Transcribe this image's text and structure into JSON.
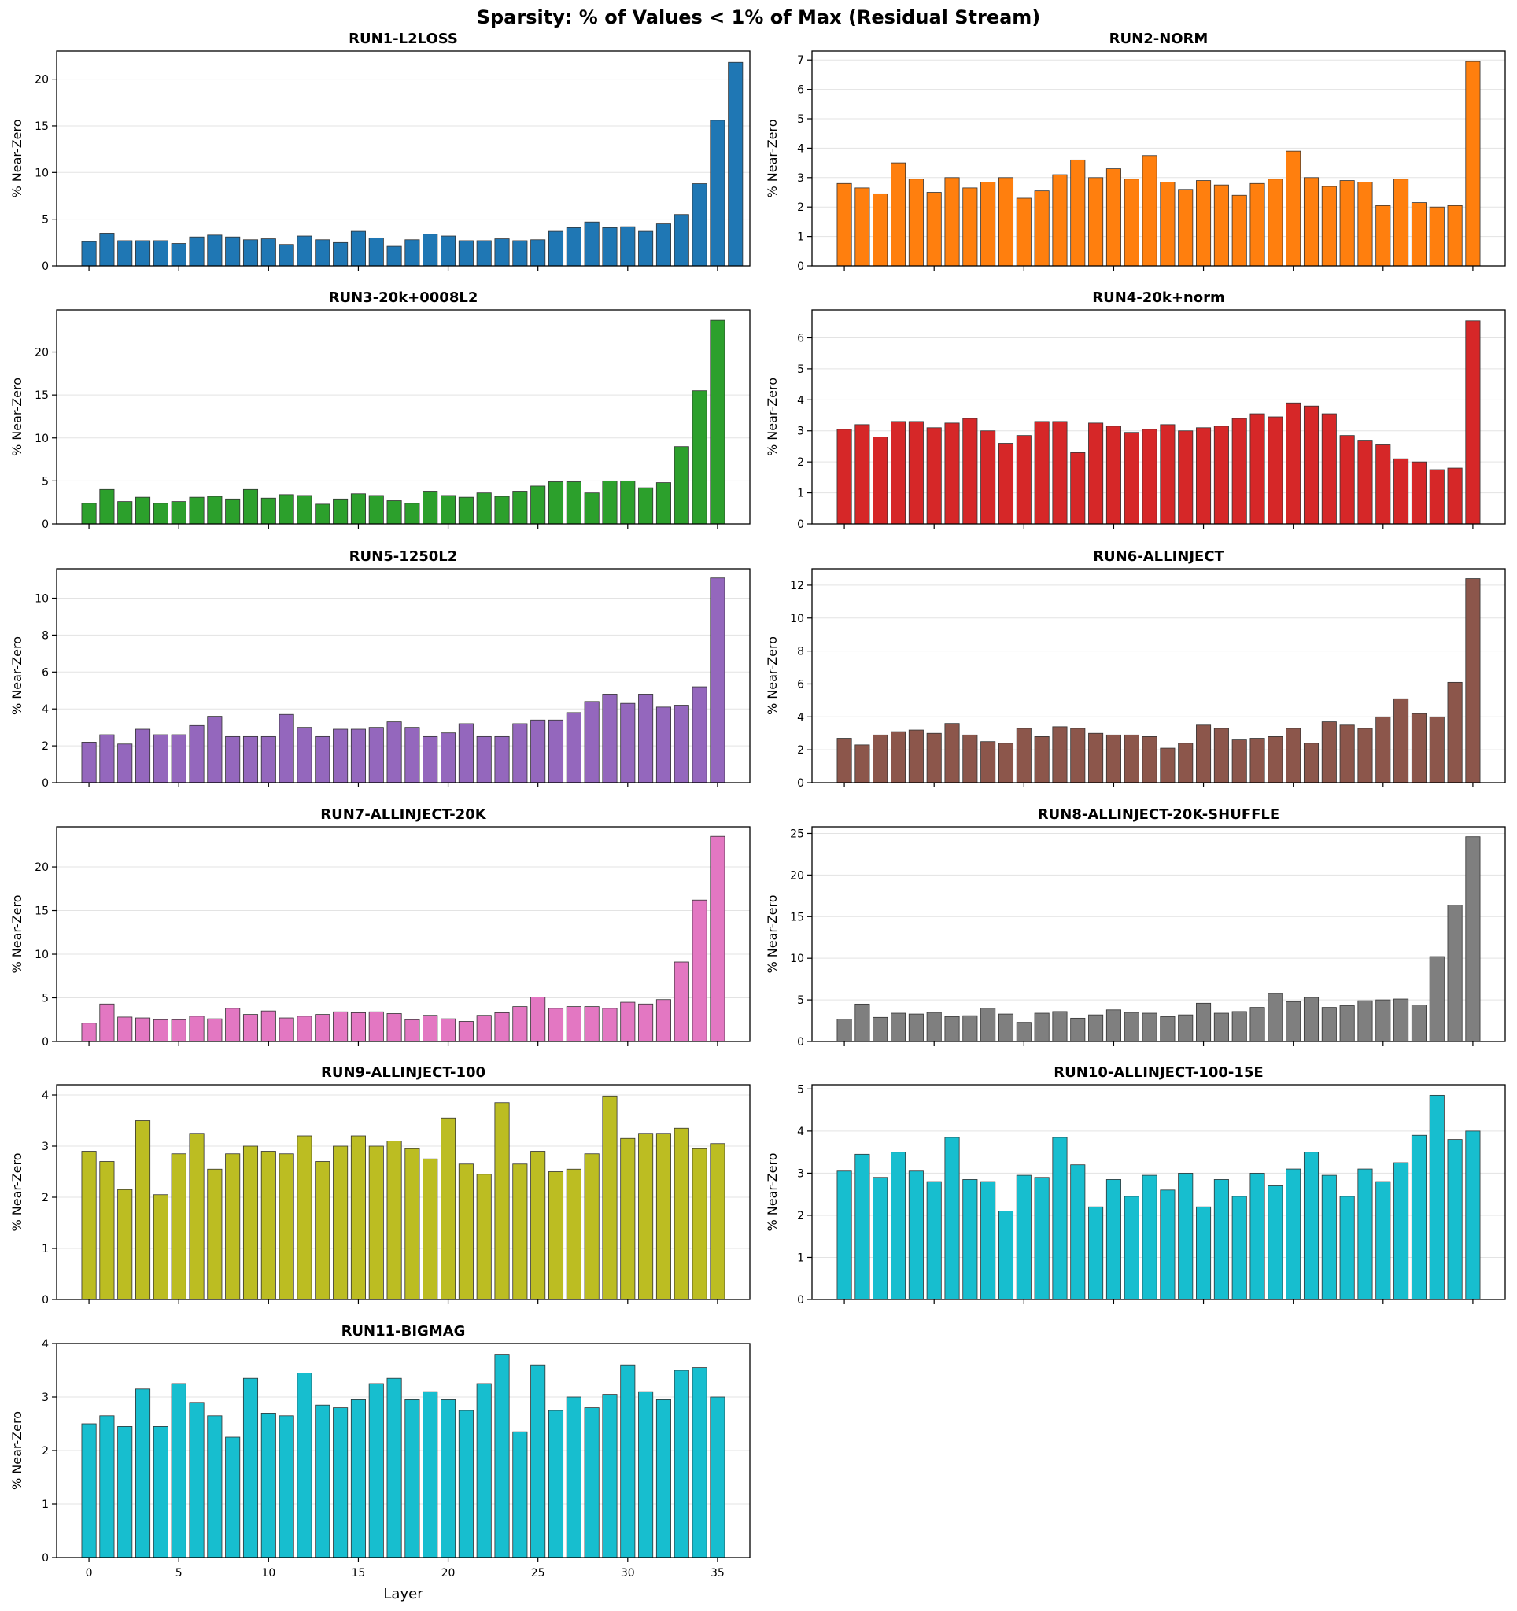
{
  "title": "Sparsity: % of Values < 1% of Max (Residual Stream)",
  "chart_data": [
    {
      "type": "bar",
      "title": "RUN1-L2LOSS",
      "color": "#1f77b4",
      "ylabel": "% Near-Zero",
      "ylim": [
        0,
        23
      ],
      "yticks": [
        0,
        5,
        10,
        15,
        20
      ],
      "values": [
        2.6,
        3.5,
        2.7,
        2.7,
        2.7,
        2.4,
        3.1,
        3.3,
        3.1,
        2.8,
        2.9,
        2.3,
        3.2,
        2.8,
        2.5,
        3.7,
        3.0,
        2.1,
        2.8,
        3.4,
        3.2,
        2.7,
        2.7,
        2.9,
        2.7,
        2.8,
        3.7,
        4.1,
        4.7,
        4.1,
        4.2,
        3.7,
        4.5,
        5.5,
        8.8,
        15.6,
        21.8
      ]
    },
    {
      "type": "bar",
      "title": "RUN2-NORM",
      "color": "#ff7f0e",
      "ylabel": "% Near-Zero",
      "ylim": [
        0,
        7.3
      ],
      "yticks": [
        0,
        1,
        2,
        3,
        4,
        5,
        6,
        7
      ],
      "values": [
        2.8,
        2.65,
        2.45,
        3.5,
        2.95,
        2.5,
        3.0,
        2.65,
        2.85,
        3.0,
        2.3,
        2.55,
        3.1,
        3.6,
        3.0,
        3.3,
        2.95,
        3.75,
        2.85,
        2.6,
        2.9,
        2.75,
        2.4,
        2.8,
        2.95,
        3.9,
        3.0,
        2.7,
        2.9,
        2.85,
        2.05,
        2.95,
        2.15,
        2.0,
        2.05,
        6.95
      ]
    },
    {
      "type": "bar",
      "title": "RUN3-20k+0008L2",
      "color": "#2ca02c",
      "ylabel": "% Near-Zero",
      "ylim": [
        0,
        24.9
      ],
      "yticks": [
        0,
        5,
        10,
        15,
        20
      ],
      "values": [
        2.4,
        4.0,
        2.6,
        3.1,
        2.4,
        2.6,
        3.1,
        3.2,
        2.9,
        4.0,
        3.0,
        3.4,
        3.3,
        2.3,
        2.9,
        3.5,
        3.3,
        2.7,
        2.4,
        3.8,
        3.3,
        3.1,
        3.6,
        3.2,
        3.8,
        4.4,
        4.9,
        4.9,
        3.6,
        5.0,
        5.0,
        4.2,
        4.8,
        9.0,
        15.5,
        23.7
      ]
    },
    {
      "type": "bar",
      "title": "RUN4-20k+norm",
      "color": "#d62728",
      "ylabel": "% Near-Zero",
      "ylim": [
        0,
        6.9
      ],
      "yticks": [
        0,
        1,
        2,
        3,
        4,
        5,
        6
      ],
      "values": [
        3.05,
        3.2,
        2.8,
        3.3,
        3.3,
        3.1,
        3.25,
        3.4,
        3.0,
        2.6,
        2.85,
        3.3,
        3.3,
        2.3,
        3.25,
        3.15,
        2.95,
        3.05,
        3.2,
        3.0,
        3.1,
        3.15,
        3.4,
        3.55,
        3.45,
        3.9,
        3.8,
        3.55,
        2.85,
        2.7,
        2.55,
        2.1,
        2.0,
        1.75,
        1.8,
        6.55
      ]
    },
    {
      "type": "bar",
      "title": "RUN5-1250L2",
      "color": "#9467bd",
      "ylabel": "% Near-Zero",
      "ylim": [
        0,
        11.6
      ],
      "yticks": [
        0,
        2,
        4,
        6,
        8,
        10
      ],
      "values": [
        2.2,
        2.6,
        2.1,
        2.9,
        2.6,
        2.6,
        3.1,
        3.6,
        2.5,
        2.5,
        2.5,
        3.7,
        3.0,
        2.5,
        2.9,
        2.9,
        3.0,
        3.3,
        3.0,
        2.5,
        2.7,
        3.2,
        2.5,
        2.5,
        3.2,
        3.4,
        3.4,
        3.8,
        4.4,
        4.8,
        4.3,
        4.8,
        4.1,
        4.2,
        5.2,
        11.1
      ]
    },
    {
      "type": "bar",
      "title": "RUN6-ALLINJECT",
      "color": "#8c564b",
      "ylabel": "% Near-Zero",
      "ylim": [
        0,
        13.0
      ],
      "yticks": [
        0,
        2,
        4,
        6,
        8,
        10,
        12
      ],
      "values": [
        2.7,
        2.3,
        2.9,
        3.1,
        3.2,
        3.0,
        3.6,
        2.9,
        2.5,
        2.4,
        3.3,
        2.8,
        3.4,
        3.3,
        3.0,
        2.9,
        2.9,
        2.8,
        2.1,
        2.4,
        3.5,
        3.3,
        2.6,
        2.7,
        2.8,
        3.3,
        2.4,
        3.7,
        3.5,
        3.3,
        4.0,
        5.1,
        4.2,
        4.0,
        6.1,
        12.4
      ]
    },
    {
      "type": "bar",
      "title": "RUN7-ALLINJECT-20K",
      "color": "#e377c2",
      "ylabel": "% Near-Zero",
      "ylim": [
        0,
        24.6
      ],
      "yticks": [
        0,
        5,
        10,
        15,
        20
      ],
      "values": [
        2.1,
        4.3,
        2.8,
        2.7,
        2.5,
        2.5,
        2.9,
        2.6,
        3.8,
        3.1,
        3.5,
        2.7,
        2.9,
        3.1,
        3.4,
        3.3,
        3.4,
        3.2,
        2.5,
        3.0,
        2.6,
        2.3,
        3.0,
        3.3,
        4.0,
        5.1,
        3.8,
        4.0,
        4.0,
        3.8,
        4.5,
        4.3,
        4.8,
        9.1,
        16.2,
        23.5
      ]
    },
    {
      "type": "bar",
      "title": "RUN8-ALLINJECT-20K-SHUFFLE",
      "color": "#7f7f7f",
      "ylabel": "% Near-Zero",
      "ylim": [
        0,
        25.8
      ],
      "yticks": [
        0,
        5,
        10,
        15,
        20,
        25
      ],
      "values": [
        2.7,
        4.5,
        2.9,
        3.4,
        3.3,
        3.5,
        3.0,
        3.1,
        4.0,
        3.3,
        2.3,
        3.4,
        3.6,
        2.8,
        3.2,
        3.8,
        3.5,
        3.4,
        3.0,
        3.2,
        4.6,
        3.4,
        3.6,
        4.1,
        5.8,
        4.8,
        5.3,
        4.1,
        4.3,
        4.9,
        5.0,
        5.1,
        4.4,
        10.2,
        16.4,
        24.6
      ]
    },
    {
      "type": "bar",
      "title": "RUN9-ALLINJECT-100",
      "color": "#bcbd22",
      "ylabel": "% Near-Zero",
      "ylim": [
        0,
        4.2
      ],
      "yticks": [
        0,
        1,
        2,
        3,
        4
      ],
      "values": [
        2.9,
        2.7,
        2.15,
        3.5,
        2.05,
        2.85,
        3.25,
        2.55,
        2.85,
        3.0,
        2.9,
        2.85,
        3.2,
        2.7,
        3.0,
        3.2,
        3.0,
        3.1,
        2.95,
        2.75,
        3.55,
        2.65,
        2.45,
        3.85,
        2.65,
        2.9,
        2.5,
        2.55,
        2.85,
        3.98,
        3.15,
        3.25,
        3.25,
        3.35,
        2.95,
        3.05
      ]
    },
    {
      "type": "bar",
      "title": "RUN10-ALLINJECT-100-15E",
      "color": "#17becf",
      "ylabel": "% Near-Zero",
      "ylim": [
        0,
        5.1
      ],
      "yticks": [
        0,
        1,
        2,
        3,
        4,
        5
      ],
      "values": [
        3.05,
        3.45,
        2.9,
        3.5,
        3.05,
        2.8,
        3.85,
        2.85,
        2.8,
        2.1,
        2.95,
        2.9,
        3.85,
        3.2,
        2.2,
        2.85,
        2.45,
        2.95,
        2.6,
        3.0,
        2.2,
        2.85,
        2.45,
        3.0,
        2.7,
        3.1,
        3.5,
        2.95,
        2.45,
        3.1,
        2.8,
        3.25,
        3.9,
        4.85,
        3.8,
        4.0
      ]
    },
    {
      "type": "bar",
      "title": "RUN11-BIGMAG",
      "color": "#17becf",
      "ylabel": "% Near-Zero",
      "ylim": [
        0,
        4.0
      ],
      "yticks": [
        0,
        1,
        2,
        3,
        4
      ],
      "values": [
        2.5,
        2.65,
        2.45,
        3.15,
        2.45,
        3.25,
        2.9,
        2.65,
        2.25,
        3.35,
        2.7,
        2.65,
        3.45,
        2.85,
        2.8,
        2.95,
        3.25,
        3.35,
        2.95,
        3.1,
        2.95,
        2.75,
        3.25,
        3.8,
        2.35,
        3.6,
        2.75,
        3.0,
        2.8,
        3.05,
        3.6,
        3.1,
        2.95,
        3.5,
        3.55,
        3.0
      ]
    }
  ],
  "xaxis": {
    "label": "Layer",
    "ticks": [
      0,
      5,
      10,
      15,
      20,
      25,
      30,
      35
    ]
  }
}
